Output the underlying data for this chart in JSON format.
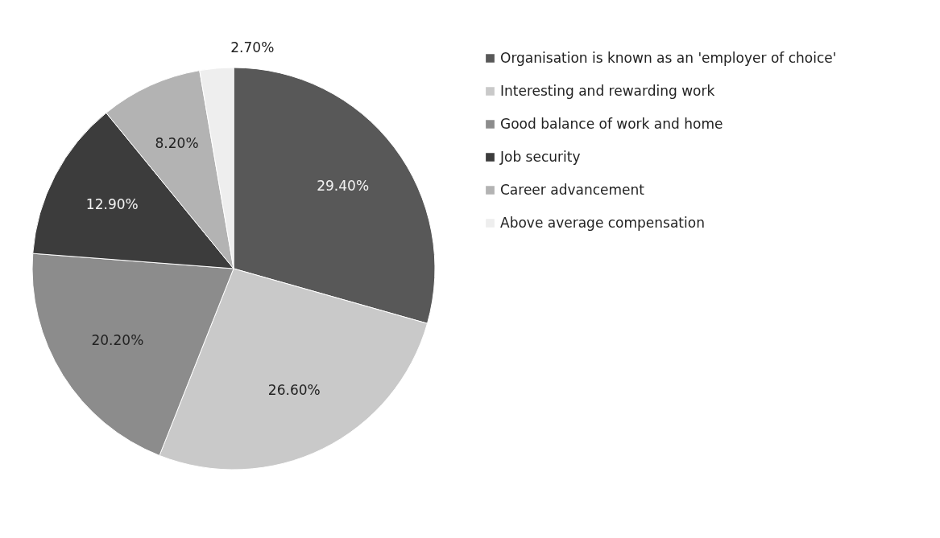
{
  "chart_data": {
    "type": "pie",
    "categories": [
      "Organisation is known as an 'employer of choice'",
      "Interesting and rewarding work",
      "Good balance of work and home",
      "Job security",
      "Career advancement",
      "Above average compensation"
    ],
    "values": [
      29.4,
      26.6,
      20.2,
      12.9,
      8.2,
      2.7
    ],
    "colors": [
      "#585858",
      "#c9c9c9",
      "#8c8c8c",
      "#3c3c3c",
      "#b3b3b3",
      "#eeeeee"
    ],
    "value_labels": [
      "29.40%",
      "26.60%",
      "20.20%",
      "12.90%",
      "8.20%",
      "2.70%"
    ],
    "legend": "right"
  }
}
